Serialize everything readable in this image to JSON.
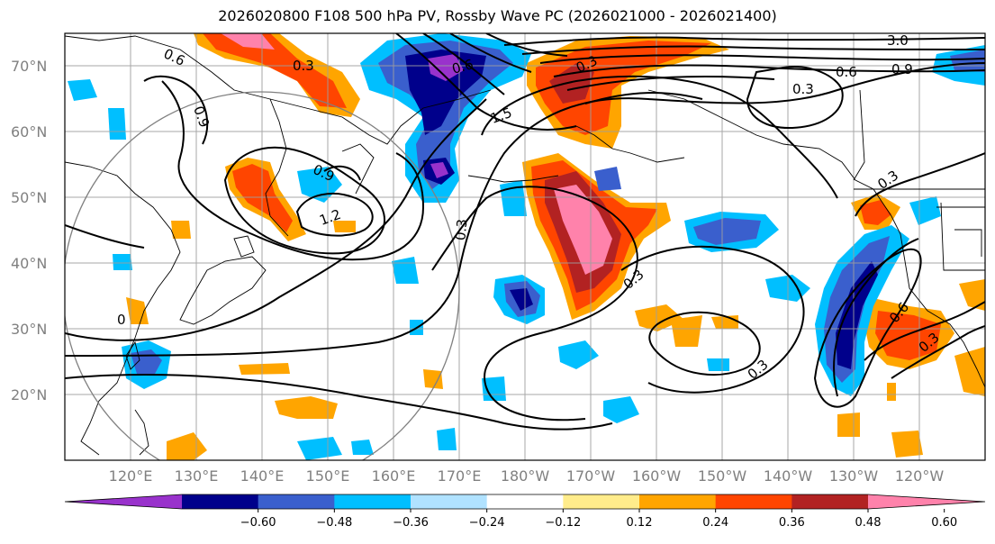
{
  "title": "2026020800 F108 500 hPa PV, Rossby Wave PC (2026021000 - 2026021400)",
  "lat_labels": [
    "70°N",
    "60°N",
    "50°N",
    "40°N",
    "30°N",
    "20°N"
  ],
  "lon_labels": [
    "120°E",
    "130°E",
    "140°E",
    "150°E",
    "160°E",
    "170°E",
    "180°W",
    "170°W",
    "160°W",
    "150°W",
    "140°W",
    "130°W",
    "120°W"
  ],
  "colorbar": {
    "labels": [
      "−0.60",
      "−0.48",
      "−0.36",
      "−0.24",
      "−0.12",
      "0.12",
      "0.24",
      "0.36",
      "0.48",
      "0.60"
    ],
    "colors": [
      "#9932CC",
      "#00008B",
      "#3A5FCD",
      "#00BFFF",
      "#B0E2FF",
      "#FFFFFF",
      "#FFEC8B",
      "#FFA500",
      "#FF4500",
      "#B22222",
      "#FF82AB"
    ]
  },
  "contour_labels": [
    "0.6",
    "0.3",
    "0.9",
    "0.9",
    "1.2",
    "0.3",
    "0",
    "1.5",
    "0.6",
    "0.3",
    "0.9",
    "0.6",
    "3.0",
    "0.3",
    "0.3",
    "0.3",
    "0.6",
    "0.3",
    "0.3"
  ]
}
